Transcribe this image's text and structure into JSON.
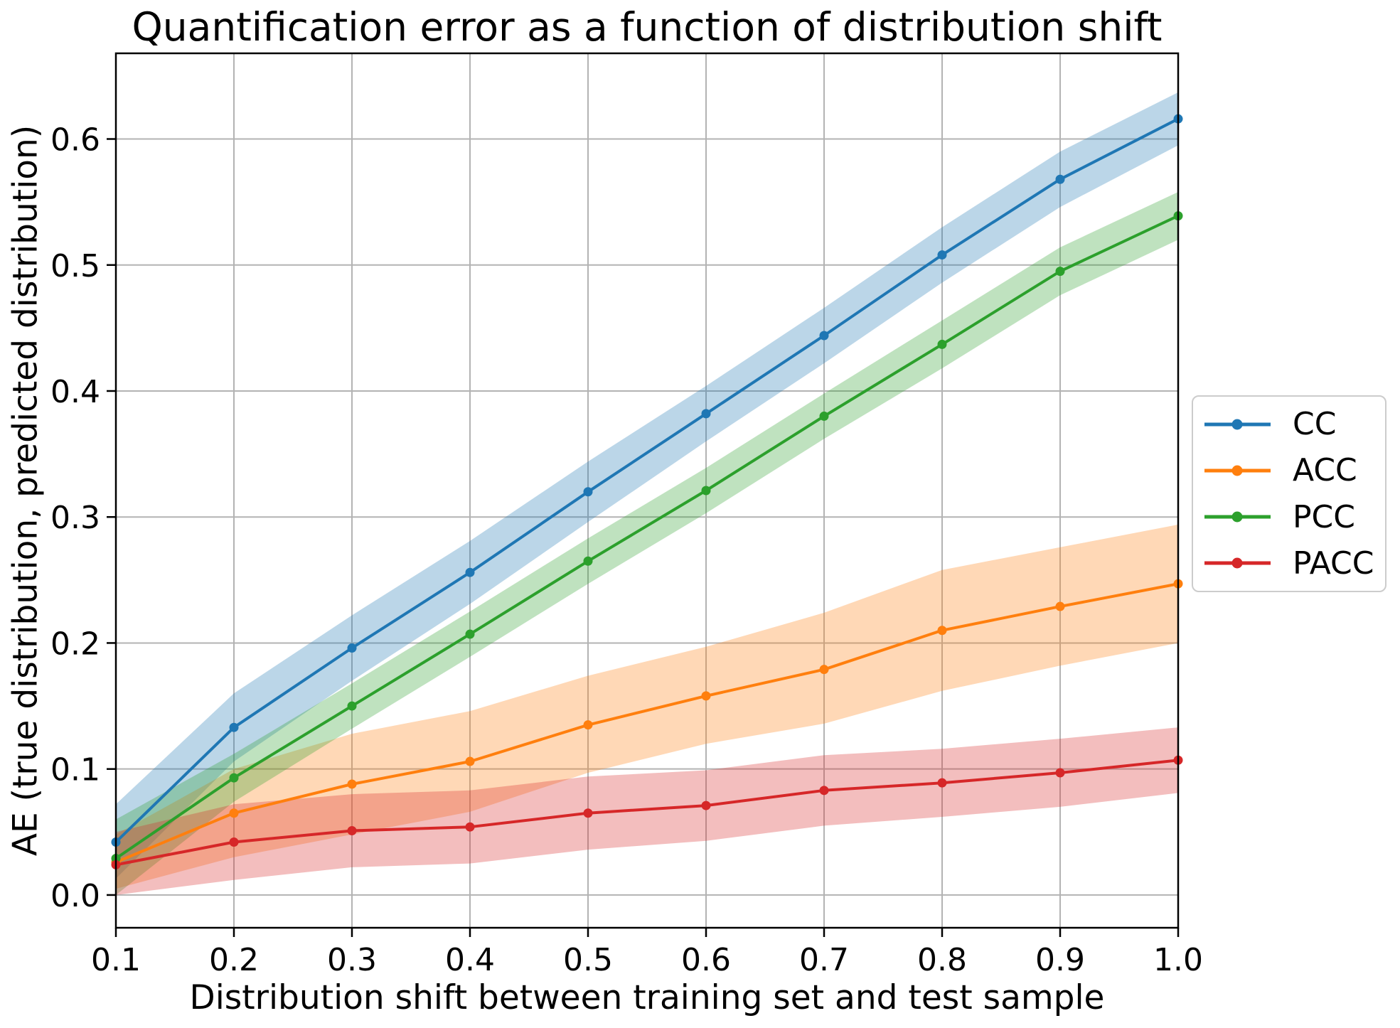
{
  "chart_data": {
    "type": "line",
    "title": "Quantification error as a function of distribution shift",
    "xlabel": "Distribution shift between training set and test sample",
    "ylabel": "AE (true distribution, predicted distribution)",
    "x": [
      0.1,
      0.2,
      0.3,
      0.4,
      0.5,
      0.6,
      0.7,
      0.8,
      0.9,
      1.0
    ],
    "xlim": [
      0.1,
      1.0
    ],
    "ylim": [
      -0.026,
      0.668
    ],
    "xticks": [
      0.1,
      0.2,
      0.3,
      0.4,
      0.5,
      0.6,
      0.7,
      0.8,
      0.9,
      1.0
    ],
    "xtick_labels": [
      "0.1",
      "0.2",
      "0.3",
      "0.4",
      "0.5",
      "0.6",
      "0.7",
      "0.8",
      "0.9",
      "1.0"
    ],
    "yticks": [
      0.0,
      0.1,
      0.2,
      0.3,
      0.4,
      0.5,
      0.6
    ],
    "ytick_labels": [
      "0.0",
      "0.1",
      "0.2",
      "0.3",
      "0.4",
      "0.5",
      "0.6"
    ],
    "grid": true,
    "grid_color": "#b3b3b3",
    "spine_color": "#000000",
    "band_alpha": 0.3,
    "legend_position": "center right outside",
    "series": [
      {
        "name": "CC",
        "color": "#1f77b4",
        "values": [
          0.042,
          0.133,
          0.196,
          0.256,
          0.32,
          0.382,
          0.444,
          0.508,
          0.568,
          0.616
        ],
        "band_lower": [
          0.013,
          0.106,
          0.17,
          0.231,
          0.296,
          0.36,
          0.422,
          0.486,
          0.546,
          0.595
        ],
        "band_upper": [
          0.072,
          0.16,
          0.222,
          0.281,
          0.344,
          0.404,
          0.466,
          0.53,
          0.59,
          0.637
        ]
      },
      {
        "name": "ACC",
        "color": "#ff7f0e",
        "values": [
          0.026,
          0.065,
          0.088,
          0.106,
          0.135,
          0.158,
          0.179,
          0.21,
          0.229,
          0.247
        ],
        "band_lower": [
          0.005,
          0.03,
          0.048,
          0.066,
          0.097,
          0.12,
          0.136,
          0.162,
          0.182,
          0.2
        ],
        "band_upper": [
          0.048,
          0.1,
          0.128,
          0.146,
          0.174,
          0.197,
          0.224,
          0.258,
          0.276,
          0.294
        ]
      },
      {
        "name": "PCC",
        "color": "#2ca02c",
        "values": [
          0.029,
          0.093,
          0.15,
          0.207,
          0.265,
          0.321,
          0.38,
          0.437,
          0.495,
          0.539
        ],
        "band_lower": [
          0.0,
          0.074,
          0.132,
          0.189,
          0.247,
          0.303,
          0.362,
          0.418,
          0.476,
          0.52
        ],
        "band_upper": [
          0.06,
          0.112,
          0.168,
          0.225,
          0.283,
          0.339,
          0.398,
          0.456,
          0.514,
          0.558
        ]
      },
      {
        "name": "PACC",
        "color": "#d62728",
        "values": [
          0.024,
          0.042,
          0.051,
          0.054,
          0.065,
          0.071,
          0.083,
          0.089,
          0.097,
          0.107
        ],
        "band_lower": [
          0.0,
          0.012,
          0.022,
          0.025,
          0.036,
          0.043,
          0.055,
          0.062,
          0.07,
          0.081
        ],
        "band_upper": [
          0.05,
          0.072,
          0.08,
          0.083,
          0.094,
          0.099,
          0.111,
          0.116,
          0.124,
          0.133
        ]
      }
    ]
  }
}
